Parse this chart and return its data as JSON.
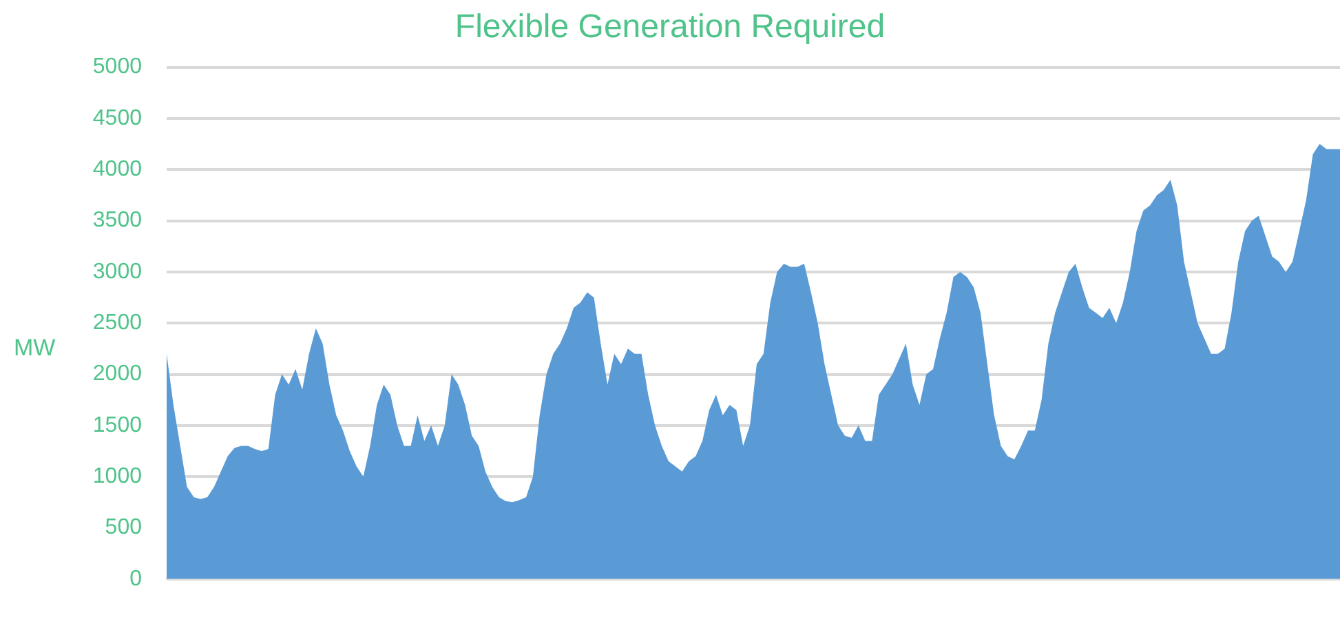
{
  "chart_data": {
    "type": "area",
    "title": "Flexible Generation Required",
    "ylabel": "MW",
    "color": "#5b9bd5",
    "categories": [
      null,
      null,
      null,
      null,
      null,
      null,
      null,
      null,
      null,
      null,
      null,
      null,
      null,
      null,
      null,
      null,
      null,
      null,
      null,
      null,
      null,
      null,
      null,
      null,
      null,
      null,
      null,
      null,
      null,
      null,
      null,
      null,
      null,
      null,
      null,
      null,
      null,
      null,
      null,
      null,
      null,
      null,
      null,
      null,
      null,
      null,
      null,
      null,
      null,
      null,
      null,
      null,
      null,
      null,
      null,
      null,
      null,
      null,
      null,
      null,
      null,
      null,
      null,
      null,
      null,
      null,
      null,
      null,
      null,
      null,
      null,
      null,
      null,
      null,
      null,
      null,
      null,
      null,
      null,
      null,
      null,
      null,
      null,
      null,
      null,
      null,
      null,
      null,
      null,
      null,
      null,
      null,
      null,
      null,
      null,
      null,
      null,
      null,
      null,
      null,
      null,
      null,
      null,
      null,
      null,
      null,
      null,
      null,
      null,
      null,
      null,
      null,
      null,
      null,
      null,
      null,
      null,
      null,
      null,
      null,
      null,
      null,
      null,
      null,
      null,
      null,
      null,
      null,
      null,
      null,
      null,
      null,
      null,
      null,
      null,
      null,
      null,
      null,
      null,
      null,
      null,
      null,
      null,
      null,
      null,
      null,
      null,
      null,
      null,
      null,
      null,
      null,
      null,
      null,
      null,
      null,
      null,
      null,
      null,
      null,
      null,
      null,
      null,
      null,
      null,
      null,
      null,
      null,
      null,
      null,
      null,
      null,
      null,
      null
    ],
    "values": [
      2200,
      1700,
      1300,
      900,
      800,
      780,
      800,
      900,
      1050,
      1200,
      1280,
      1300,
      1300,
      1270,
      1250,
      1270,
      1800,
      2000,
      1900,
      2050,
      1850,
      2200,
      2450,
      2300,
      1900,
      1600,
      1450,
      1250,
      1100,
      1000,
      1300,
      1700,
      1900,
      1800,
      1500,
      1300,
      1300,
      1600,
      1350,
      1500,
      1300,
      1500,
      2000,
      1900,
      1700,
      1400,
      1300,
      1050,
      900,
      800,
      760,
      750,
      770,
      800,
      1000,
      1600,
      2000,
      2200,
      2300,
      2450,
      2650,
      2700,
      2800,
      2750,
      2300,
      1900,
      2200,
      2100,
      2250,
      2200,
      2200,
      1800,
      1500,
      1300,
      1150,
      1100,
      1050,
      1150,
      1200,
      1350,
      1650,
      1800,
      1600,
      1700,
      1650,
      1300,
      1500,
      2100,
      2200,
      2700,
      3000,
      3080,
      3050,
      3050,
      3080,
      2800,
      2500,
      2100,
      1800,
      1500,
      1400,
      1380,
      1500,
      1350,
      1350,
      1800,
      1900,
      2000,
      2150,
      2300,
      1900,
      1700,
      2000,
      2050,
      2350,
      2600,
      2950,
      3000,
      2950,
      2850,
      2600,
      2100,
      1600,
      1300,
      1200,
      1170,
      1300,
      1450,
      1450,
      1750,
      2300,
      2600,
      2800,
      3000,
      3080,
      2850,
      2650,
      2600,
      2550,
      2650,
      2500,
      2700,
      3000,
      3400,
      3600,
      3650,
      3750,
      3800,
      3900,
      3650,
      3100,
      2800,
      2500,
      2350,
      2200,
      2200,
      2250,
      2600,
      3100,
      3400,
      3500,
      3550,
      3350,
      3150,
      3100,
      3000,
      3100,
      3400,
      3700,
      4150,
      4250,
      4200,
      4200,
      4200
    ],
    "ylim": [
      0,
      5000
    ],
    "yticks": [
      0,
      500,
      1000,
      1500,
      2000,
      2500,
      3000,
      3500,
      4000,
      4500,
      5000
    ],
    "grid": "y",
    "legend": false
  }
}
